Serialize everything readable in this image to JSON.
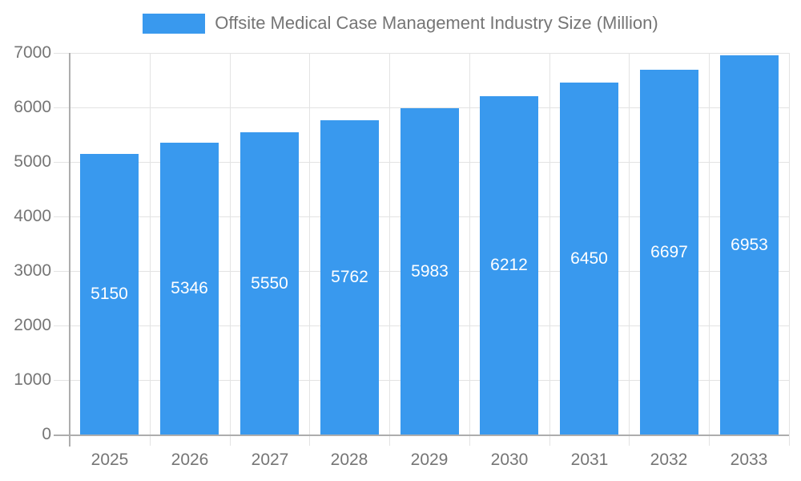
{
  "chart_data": {
    "type": "bar",
    "title": "Offsite Medical Case Management Industry Size (Million)",
    "categories": [
      "2025",
      "2026",
      "2027",
      "2028",
      "2029",
      "2030",
      "2031",
      "2032",
      "2033"
    ],
    "series": [
      {
        "name": "Offsite Medical Case Management Industry Size (Million)",
        "values": [
          5150,
          5346,
          5550,
          5762,
          5983,
          6212,
          6450,
          6697,
          6953
        ]
      }
    ],
    "xlabel": "",
    "ylabel": "",
    "ylim": [
      0,
      7000
    ],
    "ytick_step": 1000,
    "yticks": [
      "0",
      "1000",
      "2000",
      "3000",
      "4000",
      "5000",
      "6000",
      "7000"
    ],
    "grid": "horizontal and vertical gridlines on",
    "legend_position": "top-center",
    "value_labels": "white, centered at bar mid-height",
    "colors": {
      "bar": "#3999EE",
      "gridline": "#E3E3E3",
      "axis_line": "#ADADAD",
      "axis_text": "#757575",
      "value_label_text": "#FFFFFF",
      "background": "#FFFFFF"
    }
  }
}
